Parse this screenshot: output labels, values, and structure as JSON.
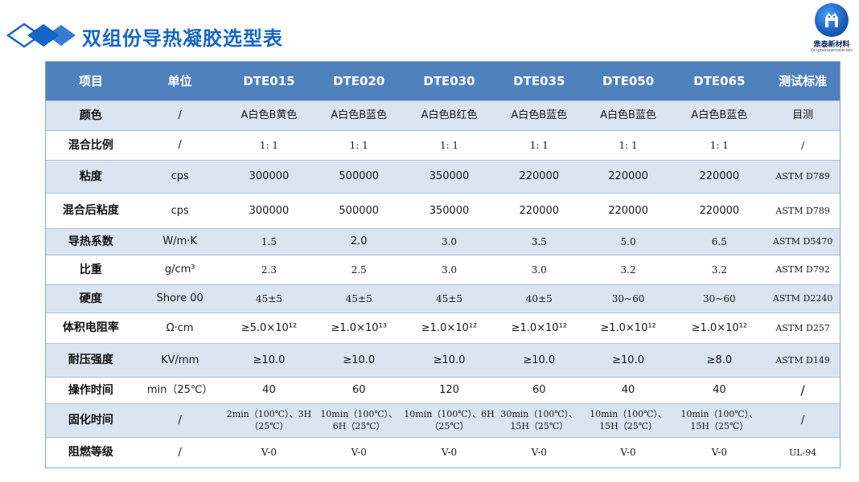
{
  "header": {
    "title": "双组份导热凝胶选型表",
    "logo_name": "鼎泰新材料",
    "logo_sub": "Dingtainewmaterials"
  },
  "colors": {
    "title": "#1565c8",
    "header_bg": "#4f81bd",
    "odd_row_bg": "#dbe5f1",
    "even_row_bg": "#ffffff"
  },
  "table": {
    "columns": [
      "项目",
      "单位",
      "DTE015",
      "DTE020",
      "DTE030",
      "DTE035",
      "DTE050",
      "DTE065",
      "测试标准"
    ],
    "rows": [
      {
        "label": "颜色",
        "unit": "/",
        "values": [
          "A白色B黄色",
          "A白色B蓝色",
          "A白色B红色",
          "A白色B蓝色",
          "A白色B蓝色",
          "A白色B蓝色"
        ],
        "standard": "目测"
      },
      {
        "label": "混合比例",
        "unit": "/",
        "values": [
          "1: 1",
          "1: 1",
          "1: 1",
          "1: 1",
          "1: 1",
          "1: 1"
        ],
        "standard": "/"
      },
      {
        "label": "粘度",
        "unit": "cps",
        "values": [
          "300000",
          "500000",
          "350000",
          "220000",
          "220000",
          "220000"
        ],
        "standard": "ASTM D789"
      },
      {
        "label": "混合后粘度",
        "unit": "cps",
        "values": [
          "300000",
          "500000",
          "350000",
          "220000",
          "220000",
          "220000"
        ],
        "standard": "ASTM D789"
      },
      {
        "label": "导热系数",
        "unit": "W/m·K",
        "values": [
          "1.5",
          "2.0",
          "3.0",
          "3.5",
          "5.0",
          "6.5"
        ],
        "standard": "ASTM D5470"
      },
      {
        "label": "比重",
        "unit": "g/cm³",
        "values": [
          "2.3",
          "2.5",
          "3.0",
          "3.0",
          "3.2",
          "3.2"
        ],
        "standard": "ASTM D792"
      },
      {
        "label": "硬度",
        "unit": "Shore 00",
        "values": [
          "45±5",
          "45±5",
          "45±5",
          "40±5",
          "30~60",
          "30~60"
        ],
        "standard": "ASTM D2240"
      },
      {
        "label": "体积电阻率",
        "unit": "Ω·cm",
        "values": [
          "≥5.0×10¹²",
          "≥1.0×10¹³",
          "≥1.0×10¹²",
          "≥1.0×10¹²",
          "≥1.0×10¹²",
          "≥1.0×10¹²"
        ],
        "standard": "ASTM D257"
      },
      {
        "label": "耐压强度",
        "unit": "KV/mm",
        "values": [
          "≥10.0",
          "≥10.0",
          "≥10.0",
          "≥10.0",
          "≥10.0",
          "≥8.0"
        ],
        "standard": "ASTM D149"
      },
      {
        "label": "操作时间",
        "unit": "min（25℃）",
        "values": [
          "40",
          "60",
          "120",
          "60",
          "40",
          "40"
        ],
        "standard": "/"
      },
      {
        "label": "固化时间",
        "unit": "/",
        "values": [
          "2min（100℃）、3H（25℃）",
          "10min（100℃）、6H（25℃）",
          "10min（100℃）、6H（25℃）",
          "30min（100℃）、15H（25℃）",
          "10min（100℃）、15H（25℃）",
          "10min（100℃）、15H（25℃）"
        ],
        "standard": "/"
      },
      {
        "label": "阻燃等级",
        "unit": "/",
        "values": [
          "V-0",
          "V-0",
          "V-0",
          "V-0",
          "V-0",
          "V-0"
        ],
        "standard": "UL-94"
      }
    ]
  }
}
